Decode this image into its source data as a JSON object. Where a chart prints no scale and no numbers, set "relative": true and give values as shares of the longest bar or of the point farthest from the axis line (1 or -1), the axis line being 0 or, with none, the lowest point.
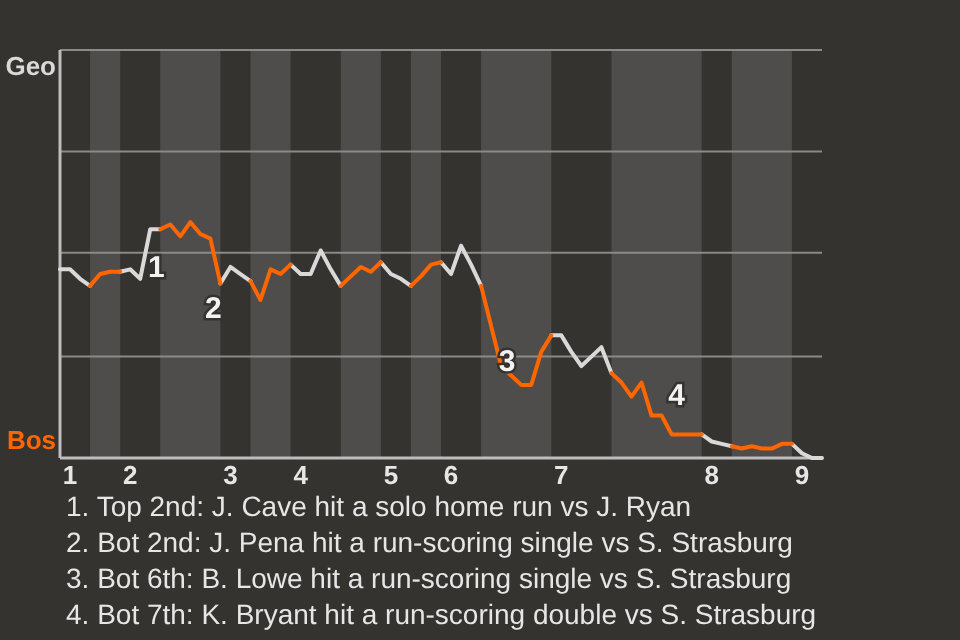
{
  "chart_data": {
    "type": "line",
    "relative": true,
    "categories": [
      null,
      "1",
      null,
      null,
      null,
      null,
      null,
      "2",
      null,
      null,
      null,
      null,
      null,
      null,
      null,
      null,
      null,
      "3",
      null,
      null,
      null,
      null,
      null,
      null,
      "4",
      null,
      null,
      null,
      null,
      null,
      null,
      null,
      null,
      "5",
      null,
      null,
      null,
      null,
      null,
      "6",
      null,
      null,
      null,
      null,
      null,
      null,
      null,
      null,
      null,
      null,
      "7",
      null,
      null,
      null,
      null,
      null,
      null,
      null,
      null,
      null,
      null,
      null,
      null,
      null,
      null,
      "8",
      null,
      null,
      null,
      null,
      null,
      null,
      null,
      null,
      "9",
      null,
      null
    ],
    "marker": "none",
    "series": [
      {
        "name": "Geo",
        "color": "#d9d9d9",
        "values": [
          0.8,
          0.8,
          0.76,
          0.73,
          null,
          null,
          0.79,
          0.8,
          0.76,
          0.97,
          0.97,
          null,
          null,
          null,
          null,
          null,
          0.74,
          0.81,
          0.78,
          0.75,
          null,
          null,
          null,
          0.82,
          0.78,
          0.78,
          0.88,
          0.8,
          0.73,
          null,
          null,
          null,
          0.83,
          0.78,
          0.76,
          0.73,
          null,
          null,
          0.83,
          0.78,
          0.9,
          0.82,
          0.73,
          null,
          null,
          null,
          null,
          null,
          null,
          0.52,
          0.52,
          0.45,
          0.39,
          0.43,
          0.47,
          0.36,
          null,
          null,
          null,
          null,
          null,
          null,
          null,
          null,
          0.1,
          0.07,
          0.06,
          0.05,
          null,
          null,
          null,
          null,
          null,
          0.06,
          0.02,
          0,
          0
        ]
      },
      {
        "name": "Bos",
        "color": "#ff6600",
        "values": [
          null,
          null,
          null,
          0.73,
          0.78,
          0.79,
          0.79,
          null,
          null,
          null,
          0.97,
          0.99,
          0.94,
          1,
          0.95,
          0.93,
          0.74,
          null,
          null,
          0.75,
          0.67,
          0.8,
          0.78,
          0.82,
          null,
          null,
          null,
          null,
          0.73,
          0.77,
          0.81,
          0.79,
          0.83,
          null,
          null,
          0.73,
          0.77,
          0.82,
          0.83,
          null,
          null,
          null,
          0.73,
          0.56,
          0.39,
          0.35,
          0.31,
          0.31,
          0.45,
          0.52,
          null,
          null,
          null,
          null,
          null,
          0.36,
          0.32,
          0.26,
          0.32,
          0.18,
          0.18,
          0.1,
          0.1,
          0.1,
          0.1,
          null,
          null,
          0.05,
          0.04,
          0.05,
          0.04,
          0.04,
          0.06,
          0.06,
          null,
          null,
          null
        ]
      }
    ],
    "ref_lines": [
      {
        "axis": "y",
        "value": 0.43,
        "color": "#8a8a88"
      },
      {
        "axis": "y",
        "value": 0.87,
        "color": "#8a8a88"
      },
      {
        "axis": "y",
        "value": 1.3,
        "color": "#8a8a88"
      },
      {
        "axis": "y",
        "value": 1.73,
        "color": "#8a8a88"
      }
    ],
    "annotations": [
      "1",
      "2",
      "3",
      "4",
      "1. Top 2nd: J. Cave hit a solo home run vs J. Ryan",
      "2. Bot 2nd: J. Pena hit a run-scoring single vs S. Strasburg",
      "3. Bot 6th: B. Lowe hit a run-scoring single vs S. Strasburg",
      "4. Bot 7th: K. Bryant hit a run-scoring double vs S. Strasburg"
    ]
  }
}
